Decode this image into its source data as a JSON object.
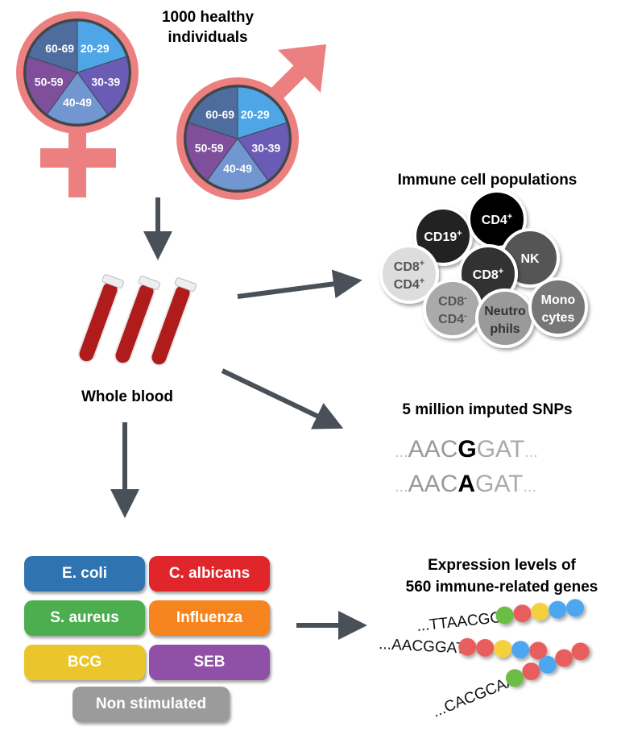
{
  "cohort": {
    "title_line1": "1000 healthy",
    "title_line2": "individuals",
    "age_groups": [
      "20-29",
      "30-39",
      "40-49",
      "50-59",
      "60-69"
    ],
    "age_colors": [
      "#4ea6e6",
      "#6a5bb5",
      "#7296cf",
      "#7f4f9c",
      "#4f6c9e"
    ],
    "symbol_color": "#ec8080"
  },
  "sample": {
    "label": "Whole blood"
  },
  "immune": {
    "title": "Immune cell populations",
    "cells": [
      {
        "l1": "CD19",
        "sup1": "+",
        "l2": "",
        "sup2": "",
        "fill": "#222222",
        "text": "#ffffff"
      },
      {
        "l1": "CD4",
        "sup1": "+",
        "l2": "",
        "sup2": "",
        "fill": "#000000",
        "text": "#ffffff"
      },
      {
        "l1": "NK",
        "sup1": "",
        "l2": "",
        "sup2": "",
        "fill": "#555555",
        "text": "#ffffff"
      },
      {
        "l1": "CD8",
        "sup1": "+",
        "l2": "CD4",
        "sup2": "+",
        "fill": "#dddddd",
        "text": "#555555"
      },
      {
        "l1": "CD8",
        "sup1": "+",
        "l2": "",
        "sup2": "",
        "fill": "#333333",
        "text": "#ffffff"
      },
      {
        "l1": "CD8",
        "sup1": "-",
        "l2": "CD4",
        "sup2": "-",
        "fill": "#aaaaaa",
        "text": "#555555"
      },
      {
        "l1": "Neutro",
        "sup1": "",
        "l2": "phils",
        "sup2": "",
        "fill": "#9a9a9a",
        "text": "#333333"
      },
      {
        "l1": "Mono",
        "sup1": "",
        "l2": "cytes",
        "sup2": "",
        "fill": "#777777",
        "text": "#ffffff"
      }
    ]
  },
  "snps": {
    "title": "5 million imputed SNPs",
    "seq1": {
      "pre": "...",
      "left": "AAC",
      "allele": "G",
      "right": "GAT",
      "post": "..."
    },
    "seq2": {
      "pre": "...",
      "left": "AAC",
      "allele": "A",
      "right": "GAT",
      "post": "..."
    }
  },
  "stimuli": [
    {
      "label": "E. coli",
      "color": "#2f74b1"
    },
    {
      "label": "C. albicans",
      "color": "#e1262b"
    },
    {
      "label": "S. aureus",
      "color": "#4dae4f"
    },
    {
      "label": "Influenza",
      "color": "#f6841f"
    },
    {
      "label": "BCG",
      "color": "#eac52b"
    },
    {
      "label": "SEB",
      "color": "#9150a7"
    },
    {
      "label": "Non stimulated",
      "color": "#9b9b9b"
    }
  ],
  "expression": {
    "title_line1": "Expression levels of",
    "title_line2": "560 immune-related genes",
    "reads": [
      {
        "seq": "...TTAACGG",
        "beads": [
          "#6cbd45",
          "#e85d5d",
          "#f5d03d",
          "#4ea6f0",
          "#4ea6f0"
        ]
      },
      {
        "seq": "...AACGGAT",
        "beads": [
          "#e85d5d",
          "#e85d5d",
          "#f5d03d",
          "#4ea6f0",
          "#e85d5d"
        ]
      },
      {
        "seq": "...CACGCAA",
        "beads": [
          "#6cbd45",
          "#e85d5d",
          "#4ea6f0",
          "#e85d5d",
          "#e85d5d"
        ]
      }
    ]
  },
  "arrow_color": "#4a5058"
}
